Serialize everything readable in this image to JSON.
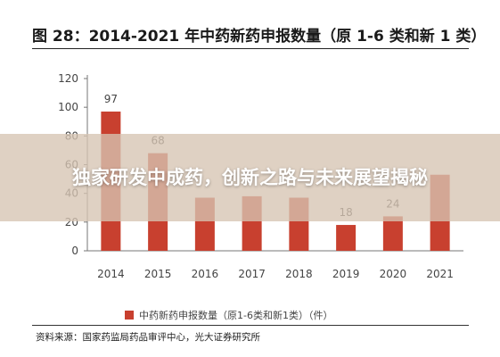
{
  "overlay": {
    "headline": "独家研发中成药，创新之路与未来展望揭秘"
  },
  "chart_data": {
    "type": "bar",
    "title": "图 28：2014-2021 年中药新药申报数量（原 1-6 类和新 1 类）",
    "categories": [
      "2014",
      "2015",
      "2016",
      "2017",
      "2018",
      "2019",
      "2020",
      "2021"
    ],
    "series": [
      {
        "name": "中药新药申报数量（原1-6类和新1类）（件）",
        "values": [
          97,
          68,
          37,
          38,
          37,
          18,
          24,
          53
        ],
        "color": "#c8402f"
      }
    ],
    "data_labels": [
      "97",
      "68",
      "",
      "",
      "",
      "18",
      "24",
      ""
    ],
    "yticks": [
      0,
      20,
      40,
      60,
      80,
      100,
      120
    ],
    "ylim": [
      0,
      120
    ],
    "grid": false,
    "legend": "bottom",
    "source": "资料来源：国家药监局药品审评中心，光大证券研究所"
  }
}
